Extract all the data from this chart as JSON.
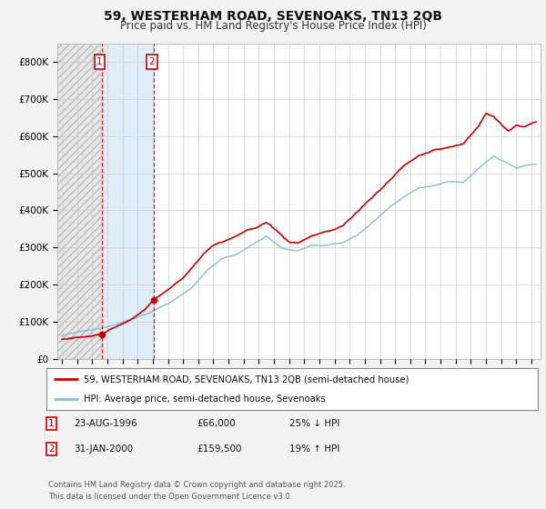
{
  "title": "59, WESTERHAM ROAD, SEVENOAKS, TN13 2QB",
  "subtitle": "Price paid vs. HM Land Registry's House Price Index (HPI)",
  "ylim": [
    0,
    850000
  ],
  "yticks": [
    0,
    100000,
    200000,
    300000,
    400000,
    500000,
    600000,
    700000,
    800000
  ],
  "ytick_labels": [
    "£0",
    "£100K",
    "£200K",
    "£300K",
    "£400K",
    "£500K",
    "£600K",
    "£700K",
    "£800K"
  ],
  "xlim_start": 1993.7,
  "xlim_end": 2025.6,
  "hpi_color": "#88bbdd",
  "price_color": "#cc0000",
  "bg_color": "#f2f2f2",
  "plot_bg": "#ffffff",
  "hatch_start": 1993.7,
  "hatch_end": 1996.58,
  "blue_shade_start": 1996.58,
  "blue_shade_end": 2000.08,
  "sale1_x": 1996.64,
  "sale1_y": 66000,
  "sale2_x": 2000.08,
  "sale2_y": 159500,
  "legend_line1": "59, WESTERHAM ROAD, SEVENOAKS, TN13 2QB (semi-detached house)",
  "legend_line2": "HPI: Average price, semi-detached house, Sevenoaks",
  "annotation1_date": "23-AUG-1996",
  "annotation1_price": "£66,000",
  "annotation1_hpi": "25% ↓ HPI",
  "annotation2_date": "31-JAN-2000",
  "annotation2_price": "£159,500",
  "annotation2_hpi": "19% ↑ HPI",
  "footer": "Contains HM Land Registry data © Crown copyright and database right 2025.\nThis data is licensed under the Open Government Licence v3.0.",
  "title_fontsize": 10,
  "subtitle_fontsize": 8.5
}
